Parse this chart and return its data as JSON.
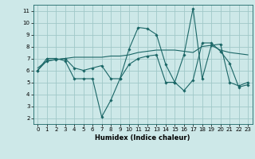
{
  "xlabel": "Humidex (Indice chaleur)",
  "background_color": "#cde8e8",
  "grid_color": "#a0c8c8",
  "line_color": "#1a6666",
  "xlim": [
    -0.5,
    23.5
  ],
  "ylim": [
    1.5,
    11.5
  ],
  "xticks": [
    0,
    1,
    2,
    3,
    4,
    5,
    6,
    7,
    8,
    9,
    10,
    11,
    12,
    13,
    14,
    15,
    16,
    17,
    18,
    19,
    20,
    21,
    22,
    23
  ],
  "yticks": [
    2,
    3,
    4,
    5,
    6,
    7,
    8,
    9,
    10,
    11
  ],
  "line1_x": [
    0,
    1,
    2,
    3,
    4,
    5,
    6,
    7,
    8,
    9,
    10,
    11,
    12,
    13,
    14,
    15,
    16,
    17,
    18,
    19,
    20,
    21,
    22,
    23
  ],
  "line1_y": [
    6.0,
    7.0,
    7.0,
    6.8,
    5.3,
    5.3,
    5.3,
    2.1,
    3.5,
    5.3,
    7.8,
    9.6,
    9.5,
    9.0,
    6.5,
    5.0,
    4.3,
    5.2,
    8.3,
    8.3,
    7.6,
    6.6,
    4.6,
    4.8
  ],
  "line2_x": [
    0,
    1,
    2,
    3,
    4,
    5,
    6,
    7,
    8,
    9,
    10,
    11,
    12,
    13,
    14,
    15,
    16,
    17,
    18,
    19,
    20,
    21,
    22,
    23
  ],
  "line2_y": [
    6.2,
    6.8,
    6.9,
    7.0,
    7.1,
    7.1,
    7.1,
    7.1,
    7.2,
    7.2,
    7.3,
    7.5,
    7.6,
    7.7,
    7.7,
    7.7,
    7.6,
    7.5,
    8.0,
    8.1,
    7.7,
    7.5,
    7.4,
    7.3
  ],
  "line3_x": [
    0,
    1,
    2,
    3,
    4,
    5,
    6,
    7,
    8,
    9,
    10,
    11,
    12,
    13,
    14,
    15,
    16,
    17,
    18,
    19,
    20,
    21,
    22,
    23
  ],
  "line3_y": [
    6.0,
    6.8,
    6.9,
    7.0,
    6.2,
    6.0,
    6.2,
    6.4,
    5.3,
    5.3,
    6.5,
    7.0,
    7.2,
    7.3,
    5.0,
    5.0,
    7.3,
    11.2,
    5.3,
    8.1,
    8.2,
    5.0,
    4.7,
    5.0
  ],
  "tick_fontsize": 5.0,
  "xlabel_fontsize": 6.0
}
